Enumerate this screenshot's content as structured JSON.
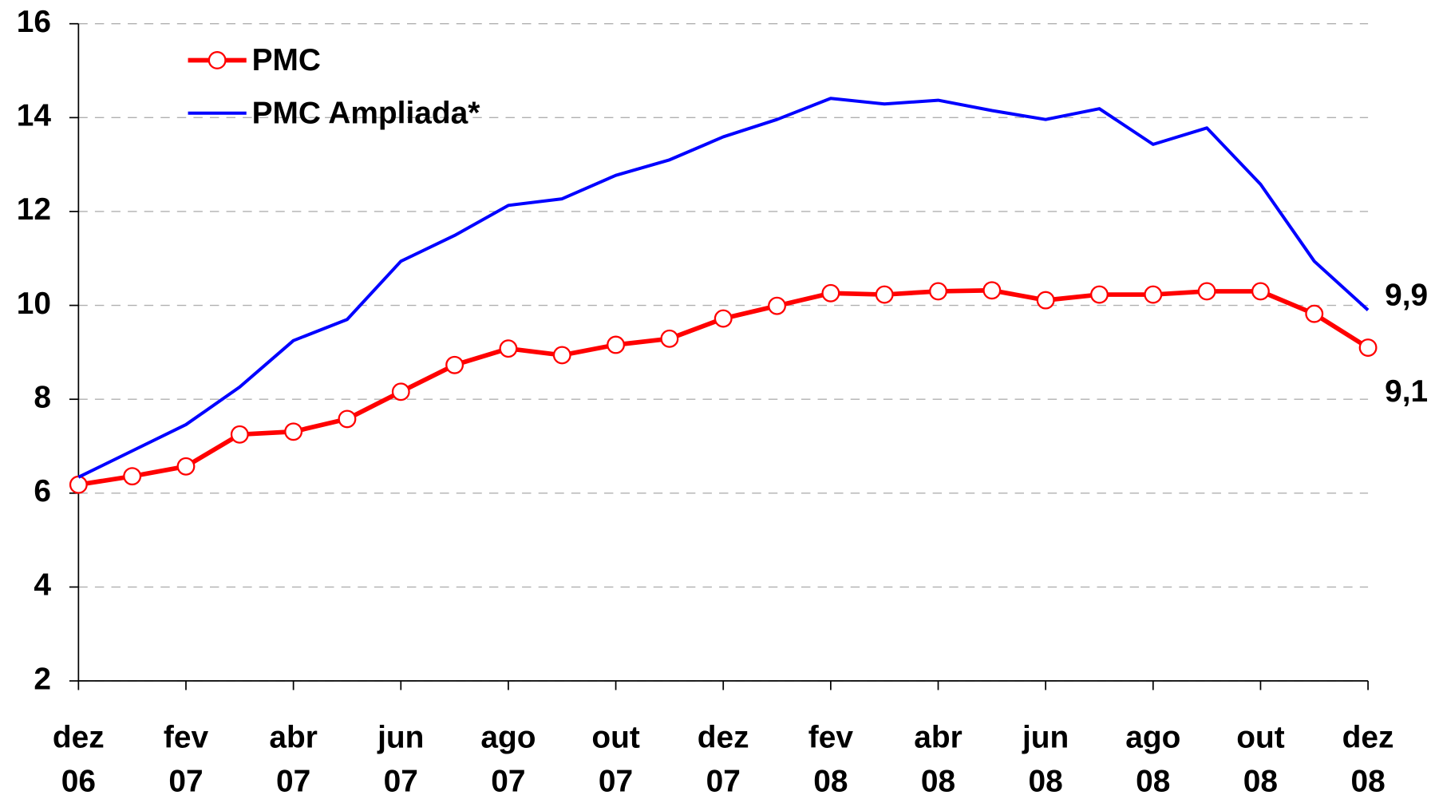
{
  "chart_data": {
    "type": "line",
    "categories": [
      "dez 06",
      null,
      "fev 07",
      null,
      "abr 07",
      null,
      "jun 07",
      null,
      "ago 07",
      null,
      "out 07",
      null,
      "dez 07",
      null,
      "fev 08",
      null,
      "abr 08",
      null,
      "jun 08",
      null,
      "ago 08",
      null,
      "out 08",
      null,
      "dez 08"
    ],
    "series": [
      {
        "name": "PMC",
        "color": "#ff0000",
        "markers": true,
        "values": [
          6.18,
          6.36,
          6.57,
          7.25,
          7.31,
          7.58,
          8.16,
          8.73,
          9.08,
          8.94,
          9.16,
          9.29,
          9.72,
          9.99,
          10.26,
          10.23,
          10.3,
          10.32,
          10.11,
          10.23,
          10.23,
          10.3,
          10.3,
          9.82,
          9.1
        ],
        "value_labels": [
          null,
          null,
          null,
          null,
          null,
          null,
          null,
          null,
          null,
          null,
          null,
          null,
          null,
          null,
          null,
          null,
          null,
          null,
          null,
          null,
          null,
          null,
          null,
          null,
          "9,1"
        ]
      },
      {
        "name": "PMC Ampliada*",
        "color": "#0000ff",
        "markers": false,
        "values": [
          6.34,
          6.9,
          7.46,
          8.26,
          9.25,
          9.7,
          10.94,
          11.49,
          12.13,
          12.27,
          12.77,
          13.1,
          13.59,
          13.96,
          14.41,
          14.29,
          14.37,
          14.15,
          13.96,
          14.19,
          13.43,
          13.78,
          12.58,
          10.94,
          9.9
        ],
        "value_labels": [
          null,
          null,
          null,
          null,
          null,
          null,
          null,
          null,
          null,
          null,
          null,
          null,
          null,
          null,
          null,
          null,
          null,
          null,
          null,
          null,
          null,
          null,
          null,
          null,
          "9,9"
        ]
      }
    ],
    "ylim": [
      2,
      16
    ],
    "yticks": [
      2,
      4,
      6,
      8,
      10,
      12,
      14,
      16
    ],
    "grid": true,
    "legend": "top-left"
  }
}
